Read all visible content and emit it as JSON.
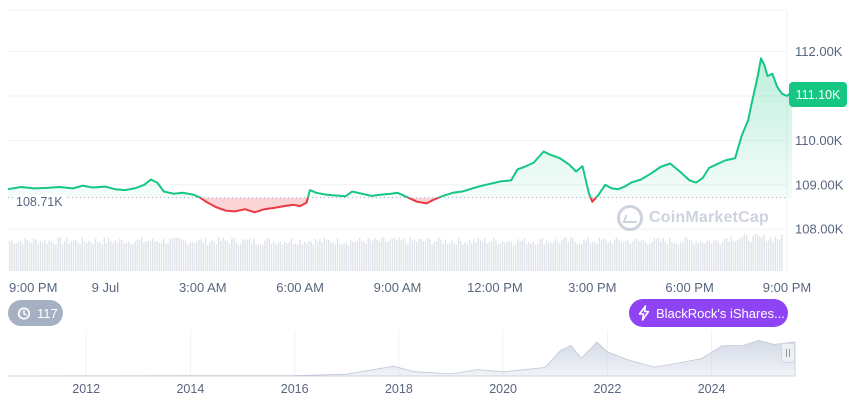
{
  "chart_data": [
    {
      "type": "area",
      "ylim": [
        107.5,
        112.5
      ],
      "y_ticks": [
        "112.00K",
        "111.00K",
        "110.00K",
        "109.00K",
        "108.00K"
      ],
      "x_ticks": [
        "9:00 PM",
        "9 Jul",
        "3:00 AM",
        "6:00 AM",
        "9:00 AM",
        "12:00 PM",
        "3:00 PM",
        "6:00 PM",
        "9:00 PM"
      ],
      "x_hours": [
        0,
        3,
        6,
        9,
        12,
        15,
        18,
        21,
        24
      ],
      "baseline": 108.71,
      "baseline_label": "108.71K",
      "current_value": 111.1,
      "current_label": "111.10K",
      "colors": {
        "up": "#16c784",
        "down": "#ea3943",
        "up_fill": "#16c784",
        "down_fill": "#ea3943"
      },
      "series": [
        {
          "points": [
            [
              0.0,
              108.9
            ],
            [
              0.4,
              108.95
            ],
            [
              0.8,
              108.92
            ],
            [
              1.2,
              108.93
            ],
            [
              1.6,
              108.95
            ],
            [
              2.0,
              108.92
            ],
            [
              2.3,
              108.98
            ],
            [
              2.6,
              108.94
            ],
            [
              3.0,
              108.96
            ],
            [
              3.3,
              108.9
            ],
            [
              3.6,
              108.88
            ],
            [
              3.9,
              108.92
            ],
            [
              4.2,
              109.0
            ],
            [
              4.4,
              109.12
            ],
            [
              4.6,
              109.05
            ],
            [
              4.8,
              108.85
            ],
            [
              5.1,
              108.8
            ],
            [
              5.4,
              108.82
            ],
            [
              5.7,
              108.78
            ],
            [
              5.9,
              108.72
            ],
            [
              6.1,
              108.62
            ],
            [
              6.4,
              108.5
            ],
            [
              6.7,
              108.42
            ],
            [
              7.0,
              108.4
            ],
            [
              7.3,
              108.45
            ],
            [
              7.6,
              108.38
            ],
            [
              7.9,
              108.45
            ],
            [
              8.2,
              108.48
            ],
            [
              8.5,
              108.52
            ],
            [
              8.8,
              108.55
            ],
            [
              9.0,
              108.52
            ],
            [
              9.2,
              108.6
            ],
            [
              9.3,
              108.88
            ],
            [
              9.5,
              108.82
            ],
            [
              9.8,
              108.78
            ],
            [
              10.1,
              108.76
            ],
            [
              10.4,
              108.74
            ],
            [
              10.6,
              108.85
            ],
            [
              10.9,
              108.8
            ],
            [
              11.2,
              108.75
            ],
            [
              11.5,
              108.78
            ],
            [
              11.8,
              108.8
            ],
            [
              12.0,
              108.82
            ],
            [
              12.3,
              108.72
            ],
            [
              12.6,
              108.62
            ],
            [
              12.9,
              108.58
            ],
            [
              13.1,
              108.66
            ],
            [
              13.4,
              108.75
            ],
            [
              13.7,
              108.82
            ],
            [
              14.0,
              108.85
            ],
            [
              14.3,
              108.92
            ],
            [
              14.6,
              108.98
            ],
            [
              14.9,
              109.03
            ],
            [
              15.2,
              109.08
            ],
            [
              15.5,
              109.1
            ],
            [
              15.7,
              109.35
            ],
            [
              15.9,
              109.4
            ],
            [
              16.2,
              109.5
            ],
            [
              16.5,
              109.75
            ],
            [
              16.7,
              109.68
            ],
            [
              17.0,
              109.6
            ],
            [
              17.3,
              109.45
            ],
            [
              17.5,
              109.3
            ],
            [
              17.7,
              109.42
            ],
            [
              17.9,
              108.8
            ],
            [
              18.0,
              108.62
            ],
            [
              18.2,
              108.78
            ],
            [
              18.4,
              109.0
            ],
            [
              18.6,
              108.92
            ],
            [
              18.8,
              108.9
            ],
            [
              19.0,
              108.96
            ],
            [
              19.2,
              109.05
            ],
            [
              19.5,
              109.12
            ],
            [
              19.8,
              109.25
            ],
            [
              20.1,
              109.4
            ],
            [
              20.4,
              109.48
            ],
            [
              20.7,
              109.3
            ],
            [
              21.0,
              109.1
            ],
            [
              21.2,
              109.05
            ],
            [
              21.4,
              109.15
            ],
            [
              21.6,
              109.38
            ],
            [
              21.8,
              109.45
            ],
            [
              22.1,
              109.55
            ],
            [
              22.4,
              109.6
            ],
            [
              22.6,
              110.1
            ],
            [
              22.8,
              110.45
            ],
            [
              22.9,
              110.8
            ],
            [
              23.1,
              111.45
            ],
            [
              23.2,
              111.85
            ],
            [
              23.3,
              111.7
            ],
            [
              23.4,
              111.45
            ],
            [
              23.55,
              111.5
            ],
            [
              23.7,
              111.2
            ],
            [
              23.85,
              111.05
            ],
            [
              24.0,
              111.0
            ],
            [
              24.15,
              111.1
            ]
          ]
        }
      ],
      "volume_note": "",
      "watermark": "CoinMarketCap"
    },
    {
      "type": "area",
      "x_ticks": [
        "2012",
        "2014",
        "2016",
        "2018",
        "2020",
        "2022",
        "2024"
      ],
      "x_years": [
        2012,
        2014,
        2016,
        2018,
        2020,
        2022,
        2024
      ],
      "xlim": [
        2010.5,
        2025.6
      ],
      "series": [
        {
          "points": [
            [
              2010.5,
              0.0
            ],
            [
              2013.0,
              0.005
            ],
            [
              2014.0,
              0.01
            ],
            [
              2016.0,
              0.01
            ],
            [
              2017.0,
              0.05
            ],
            [
              2017.9,
              0.28
            ],
            [
              2018.3,
              0.12
            ],
            [
              2019.0,
              0.06
            ],
            [
              2019.5,
              0.18
            ],
            [
              2020.0,
              0.12
            ],
            [
              2020.8,
              0.25
            ],
            [
              2021.1,
              0.75
            ],
            [
              2021.3,
              0.9
            ],
            [
              2021.5,
              0.55
            ],
            [
              2021.8,
              0.95
            ],
            [
              2022.0,
              0.7
            ],
            [
              2022.4,
              0.45
            ],
            [
              2022.9,
              0.25
            ],
            [
              2023.3,
              0.35
            ],
            [
              2023.8,
              0.5
            ],
            [
              2024.2,
              0.85
            ],
            [
              2024.6,
              0.88
            ],
            [
              2024.9,
              1.0
            ],
            [
              2025.2,
              0.92
            ],
            [
              2025.6,
              0.98
            ]
          ]
        }
      ]
    }
  ],
  "badges": {
    "current": "111.10K",
    "events_count": "117",
    "news_text": "BlackRock's iShares...",
    "baseline": "108.71K"
  },
  "watermark": "CoinMarketCap",
  "icons": {
    "events": "history-icon",
    "news": "lightning-icon"
  }
}
